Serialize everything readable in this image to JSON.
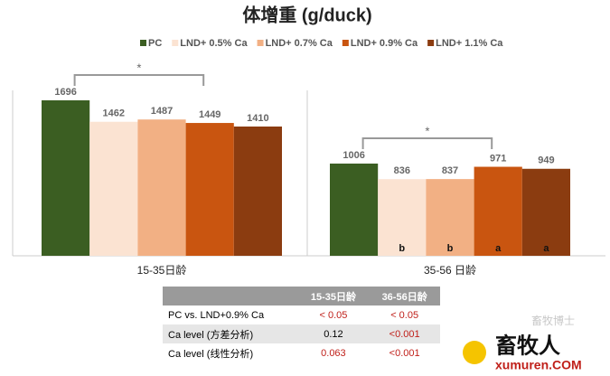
{
  "chart_data": {
    "type": "bar",
    "title": "体增重 (g/duck)",
    "categories": [
      "15-35日龄",
      "35-56 日龄"
    ],
    "series": [
      {
        "name": "PC",
        "color": "#3b5e22",
        "values": [
          1696,
          1006
        ],
        "letters": [
          null,
          null
        ]
      },
      {
        "name": "LND+ 0.5% Ca",
        "color": "#fbe3d2",
        "values": [
          1462,
          836
        ],
        "letters": [
          null,
          "b"
        ]
      },
      {
        "name": "LND+ 0.7% Ca",
        "color": "#f2b084",
        "values": [
          1487,
          837
        ],
        "letters": [
          null,
          "b"
        ]
      },
      {
        "name": "LND+ 0.9% Ca",
        "color": "#c95510",
        "values": [
          1449,
          971
        ],
        "letters": [
          null,
          "a"
        ]
      },
      {
        "name": "LND+ 1.1% Ca",
        "color": "#8b3c10",
        "values": [
          1410,
          949
        ],
        "letters": [
          null,
          "a"
        ]
      }
    ],
    "significance": [
      "*",
      "*"
    ]
  },
  "table": {
    "columns": [
      "15-35日龄",
      "36-56日龄"
    ],
    "rows": [
      [
        "PC vs. LND+0.9% Ca",
        "< 0.05",
        "< 0.05"
      ],
      [
        "Ca level (方差分析)",
        "0.12",
        "<0.001"
      ],
      [
        "Ca level (线性分析)",
        "0.063",
        "<0.001"
      ]
    ],
    "highlight_color": "#c0201a",
    "highlight": [
      [
        false,
        true,
        true
      ],
      [
        false,
        false,
        true
      ],
      [
        false,
        true,
        true
      ]
    ]
  },
  "watermark": {
    "account": "畜牧博士",
    "logo": "畜牧人",
    "site": "xumuren.COM"
  }
}
